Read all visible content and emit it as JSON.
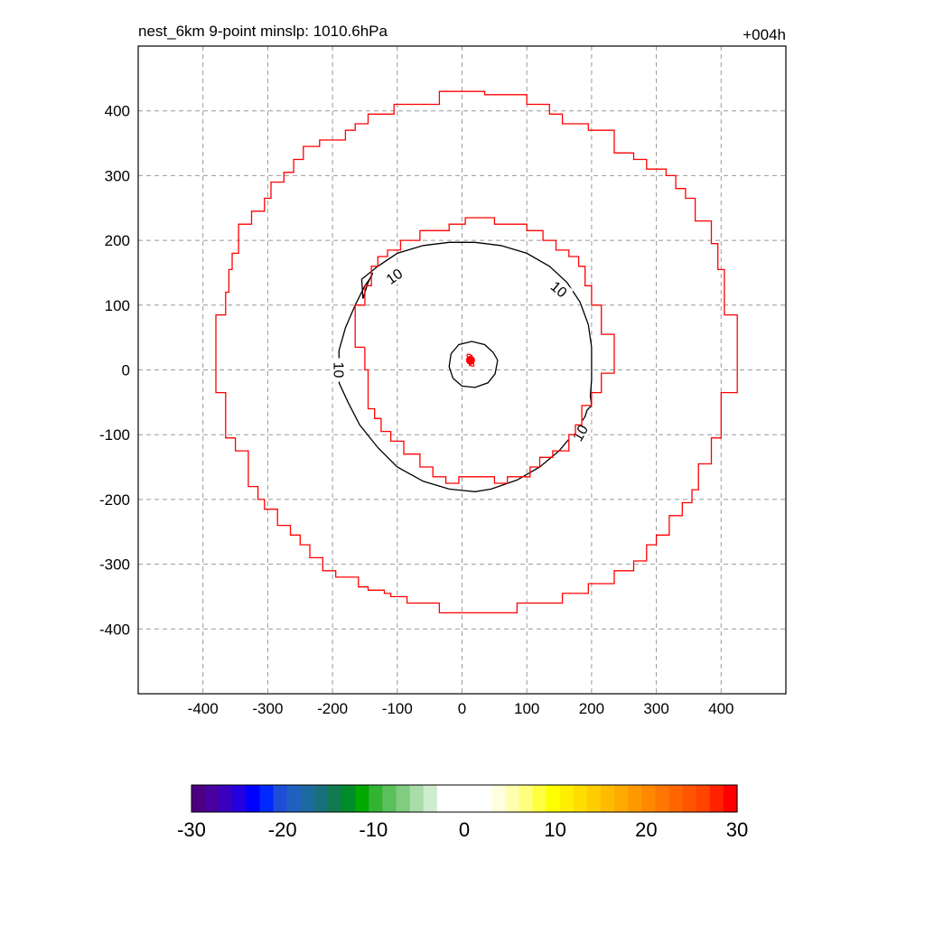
{
  "header": {
    "title": "nest_6km  9-point minslp: 1010.6hPa",
    "forecast_hour": "+004h"
  },
  "chart_data": {
    "type": "contour",
    "xlim": [
      -500,
      500
    ],
    "ylim": [
      -500,
      500
    ],
    "grid": true,
    "x_ticks": [
      -400,
      -300,
      -200,
      -100,
      0,
      100,
      200,
      300,
      400
    ],
    "y_ticks": [
      400,
      300,
      200,
      100,
      0,
      -100,
      -200,
      -300,
      -400
    ],
    "storm_center": {
      "x": 13,
      "y": 15,
      "symbol": "hurricane-symbol",
      "color": "#ff0000"
    },
    "contours": [
      {
        "level": 10,
        "color": "#000000",
        "labels": [
          {
            "text": "10",
            "x": -105,
            "y": 145,
            "angle": -35
          },
          {
            "text": "10",
            "x": 150,
            "y": 125,
            "angle": 40
          },
          {
            "text": "10",
            "x": -190,
            "y": 0,
            "angle": 90
          },
          {
            "text": "10",
            "x": 182,
            "y": -97,
            "angle": -60
          }
        ],
        "points": [
          [
            -155,
            140
          ],
          [
            -130,
            160
          ],
          [
            -100,
            180
          ],
          [
            -60,
            192
          ],
          [
            -20,
            197
          ],
          [
            20,
            197
          ],
          [
            60,
            192
          ],
          [
            100,
            180
          ],
          [
            135,
            160
          ],
          [
            162,
            135
          ],
          [
            182,
            105
          ],
          [
            195,
            70
          ],
          [
            200,
            35
          ],
          [
            200,
            -15
          ],
          [
            198,
            -40
          ],
          [
            200,
            -55
          ],
          [
            193,
            -62
          ],
          [
            190,
            -72
          ],
          [
            175,
            -95
          ],
          [
            150,
            -125
          ],
          [
            120,
            -150
          ],
          [
            85,
            -170
          ],
          [
            45,
            -184
          ],
          [
            20,
            -188
          ],
          [
            -20,
            -184
          ],
          [
            -60,
            -172
          ],
          [
            -100,
            -150
          ],
          [
            -130,
            -120
          ],
          [
            -158,
            -85
          ],
          [
            -176,
            -50
          ],
          [
            -190,
            -20
          ],
          [
            -185,
            -5
          ],
          [
            -190,
            10
          ],
          [
            -190,
            30
          ],
          [
            -180,
            65
          ],
          [
            -165,
            100
          ],
          [
            -150,
            130
          ],
          [
            -140,
            144
          ],
          [
            -138,
            150
          ],
          [
            -145,
            135
          ],
          [
            -153,
            110
          ],
          [
            -155,
            140
          ]
        ]
      },
      {
        "level": 0,
        "color": "#000000",
        "labels": [],
        "points": [
          [
            55,
            15
          ],
          [
            51,
            -6
          ],
          [
            40,
            -20
          ],
          [
            20,
            -27
          ],
          [
            0,
            -25
          ],
          [
            -14,
            -13
          ],
          [
            -20,
            5
          ],
          [
            -17,
            25
          ],
          [
            -5,
            39
          ],
          [
            15,
            44
          ],
          [
            35,
            39
          ],
          [
            48,
            27
          ],
          [
            55,
            15
          ]
        ]
      },
      {
        "level": 0,
        "color": "#ff0000",
        "labels": [],
        "points": [
          [
            -380,
            35
          ],
          [
            -380,
            -35
          ],
          [
            -365,
            -35
          ],
          [
            -365,
            -105
          ],
          [
            -350,
            -105
          ],
          [
            -350,
            -125
          ],
          [
            -330,
            -125
          ],
          [
            -330,
            -180
          ],
          [
            -315,
            -180
          ],
          [
            -315,
            -200
          ],
          [
            -305,
            -200
          ],
          [
            -305,
            -215
          ],
          [
            -285,
            -215
          ],
          [
            -285,
            -240
          ],
          [
            -265,
            -240
          ],
          [
            -265,
            -255
          ],
          [
            -250,
            -255
          ],
          [
            -250,
            -270
          ],
          [
            -235,
            -270
          ],
          [
            -235,
            -290
          ],
          [
            -215,
            -290
          ],
          [
            -215,
            -310
          ],
          [
            -195,
            -310
          ],
          [
            -195,
            -320
          ],
          [
            -160,
            -320
          ],
          [
            -160,
            -335
          ],
          [
            -145,
            -335
          ],
          [
            -145,
            -340
          ],
          [
            -120,
            -340
          ],
          [
            -120,
            -345
          ],
          [
            -110,
            -345
          ],
          [
            -110,
            -350
          ],
          [
            -85,
            -350
          ],
          [
            -85,
            -360
          ],
          [
            -35,
            -360
          ],
          [
            -35,
            -375
          ],
          [
            85,
            -375
          ],
          [
            85,
            -360
          ],
          [
            155,
            -360
          ],
          [
            155,
            -345
          ],
          [
            195,
            -345
          ],
          [
            195,
            -330
          ],
          [
            235,
            -330
          ],
          [
            235,
            -310
          ],
          [
            265,
            -310
          ],
          [
            265,
            -295
          ],
          [
            285,
            -295
          ],
          [
            285,
            -270
          ],
          [
            300,
            -270
          ],
          [
            300,
            -255
          ],
          [
            320,
            -255
          ],
          [
            320,
            -225
          ],
          [
            340,
            -225
          ],
          [
            340,
            -205
          ],
          [
            355,
            -205
          ],
          [
            355,
            -185
          ],
          [
            365,
            -185
          ],
          [
            365,
            -145
          ],
          [
            385,
            -145
          ],
          [
            385,
            -105
          ],
          [
            400,
            -105
          ],
          [
            400,
            -35
          ],
          [
            425,
            -35
          ],
          [
            425,
            85
          ],
          [
            405,
            85
          ],
          [
            405,
            155
          ],
          [
            395,
            155
          ],
          [
            395,
            195
          ],
          [
            385,
            195
          ],
          [
            385,
            230
          ],
          [
            360,
            230
          ],
          [
            360,
            265
          ],
          [
            345,
            265
          ],
          [
            345,
            280
          ],
          [
            330,
            280
          ],
          [
            330,
            300
          ],
          [
            315,
            300
          ],
          [
            315,
            310
          ],
          [
            285,
            310
          ],
          [
            285,
            325
          ],
          [
            265,
            325
          ],
          [
            265,
            335
          ],
          [
            235,
            335
          ],
          [
            235,
            370
          ],
          [
            195,
            370
          ],
          [
            195,
            380
          ],
          [
            155,
            380
          ],
          [
            155,
            395
          ],
          [
            135,
            395
          ],
          [
            135,
            410
          ],
          [
            100,
            410
          ],
          [
            100,
            425
          ],
          [
            35,
            425
          ],
          [
            35,
            430
          ],
          [
            -35,
            430
          ],
          [
            -35,
            410
          ],
          [
            -105,
            410
          ],
          [
            -105,
            395
          ],
          [
            -145,
            395
          ],
          [
            -145,
            380
          ],
          [
            -165,
            380
          ],
          [
            -165,
            370
          ],
          [
            -180,
            370
          ],
          [
            -180,
            355
          ],
          [
            -220,
            355
          ],
          [
            -220,
            345
          ],
          [
            -245,
            345
          ],
          [
            -245,
            325
          ],
          [
            -260,
            325
          ],
          [
            -260,
            305
          ],
          [
            -275,
            305
          ],
          [
            -275,
            290
          ],
          [
            -295,
            290
          ],
          [
            -295,
            265
          ],
          [
            -305,
            265
          ],
          [
            -305,
            245
          ],
          [
            -325,
            245
          ],
          [
            -325,
            225
          ],
          [
            -345,
            225
          ],
          [
            -345,
            180
          ],
          [
            -355,
            180
          ],
          [
            -355,
            155
          ],
          [
            -360,
            155
          ],
          [
            -360,
            120
          ],
          [
            -365,
            120
          ],
          [
            -365,
            85
          ],
          [
            -380,
            85
          ],
          [
            -380,
            35
          ]
        ]
      },
      {
        "level": 0,
        "color": "#ff0000",
        "labels": [],
        "points": [
          [
            -150,
            35
          ],
          [
            -150,
            0
          ],
          [
            -145,
            0
          ],
          [
            -145,
            -60
          ],
          [
            -135,
            -60
          ],
          [
            -135,
            -75
          ],
          [
            -125,
            -75
          ],
          [
            -125,
            -95
          ],
          [
            -110,
            -95
          ],
          [
            -110,
            -110
          ],
          [
            -90,
            -110
          ],
          [
            -90,
            -130
          ],
          [
            -65,
            -130
          ],
          [
            -65,
            -150
          ],
          [
            -45,
            -150
          ],
          [
            -45,
            -165
          ],
          [
            -25,
            -165
          ],
          [
            -25,
            -175
          ],
          [
            -5,
            -175
          ],
          [
            -5,
            -165
          ],
          [
            50,
            -165
          ],
          [
            50,
            -175
          ],
          [
            70,
            -175
          ],
          [
            70,
            -165
          ],
          [
            105,
            -165
          ],
          [
            105,
            -150
          ],
          [
            120,
            -150
          ],
          [
            120,
            -135
          ],
          [
            140,
            -135
          ],
          [
            140,
            -125
          ],
          [
            165,
            -125
          ],
          [
            165,
            -100
          ],
          [
            175,
            -100
          ],
          [
            175,
            -85
          ],
          [
            185,
            -85
          ],
          [
            185,
            -55
          ],
          [
            200,
            -55
          ],
          [
            200,
            -35
          ],
          [
            215,
            -35
          ],
          [
            215,
            -5
          ],
          [
            235,
            -5
          ],
          [
            235,
            55
          ],
          [
            215,
            55
          ],
          [
            215,
            100
          ],
          [
            200,
            100
          ],
          [
            200,
            130
          ],
          [
            190,
            130
          ],
          [
            190,
            160
          ],
          [
            180,
            160
          ],
          [
            180,
            175
          ],
          [
            165,
            175
          ],
          [
            165,
            185
          ],
          [
            145,
            185
          ],
          [
            145,
            200
          ],
          [
            125,
            200
          ],
          [
            125,
            215
          ],
          [
            100,
            215
          ],
          [
            100,
            225
          ],
          [
            50,
            225
          ],
          [
            50,
            235
          ],
          [
            5,
            235
          ],
          [
            5,
            225
          ],
          [
            -20,
            225
          ],
          [
            -20,
            215
          ],
          [
            -65,
            215
          ],
          [
            -65,
            200
          ],
          [
            -95,
            200
          ],
          [
            -95,
            185
          ],
          [
            -115,
            185
          ],
          [
            -115,
            175
          ],
          [
            -130,
            175
          ],
          [
            -130,
            160
          ],
          [
            -140,
            160
          ],
          [
            -140,
            130
          ],
          [
            -150,
            130
          ],
          [
            -150,
            100
          ],
          [
            -165,
            100
          ],
          [
            -165,
            35
          ],
          [
            -150,
            35
          ]
        ]
      }
    ],
    "colorbar": {
      "ticks": [
        -30,
        -20,
        -10,
        0,
        10,
        20,
        30
      ],
      "range": [
        -30,
        30
      ],
      "colors": [
        "#4b0082",
        "#4800a0",
        "#3a00c0",
        "#2400e0",
        "#0000ff",
        "#0028ff",
        "#1e4ed8",
        "#2060c0",
        "#1c6aa0",
        "#18707a",
        "#127a50",
        "#008c28",
        "#00a800",
        "#32b432",
        "#5ac05a",
        "#80cc80",
        "#a8dca8",
        "#cfeccf",
        "#ffffff",
        "#ffffff",
        "#ffffff",
        "#ffffff",
        "#ffffe0",
        "#ffffb0",
        "#ffff80",
        "#ffff40",
        "#ffff00",
        "#ffee00",
        "#ffdd00",
        "#ffcc00",
        "#ffbb00",
        "#ffaa00",
        "#ff9900",
        "#ff8800",
        "#ff7700",
        "#ff6600",
        "#ff5500",
        "#ff4400",
        "#ff2200",
        "#ff0000"
      ]
    }
  }
}
